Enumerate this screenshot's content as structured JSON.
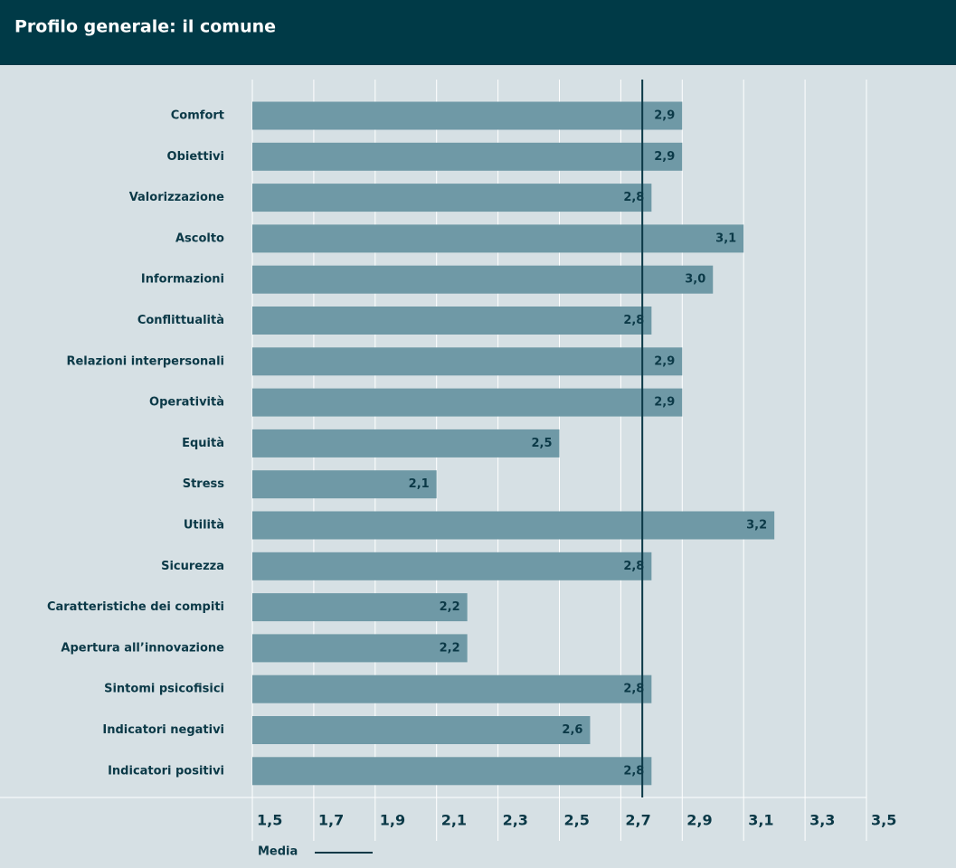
{
  "chart_data": {
    "type": "bar",
    "orientation": "horizontal",
    "title": "Profilo generale: il comune",
    "categories": [
      "Comfort",
      "Obiettivi",
      "Valorizzazione",
      "Ascolto",
      "Informazioni",
      "Conflittualità",
      "Relazioni interpersonali",
      "Operatività",
      "Equità",
      "Stress",
      "Utilità",
      "Sicurezza",
      "Caratteristiche dei compiti",
      "Apertura all’innovazione",
      "Sintomi psicofisici",
      "Indicatori negativi",
      "Indicatori positivi"
    ],
    "values": [
      2.9,
      2.9,
      2.8,
      3.1,
      3.0,
      2.8,
      2.9,
      2.9,
      2.5,
      2.1,
      3.2,
      2.8,
      2.2,
      2.2,
      2.8,
      2.6,
      2.8
    ],
    "value_labels": [
      "2,9",
      "2,9",
      "2,8",
      "3,1",
      "3,0",
      "2,8",
      "2,9",
      "2,9",
      "2,5",
      "2,1",
      "3,2",
      "2,8",
      "2,2",
      "2,2",
      "2,8",
      "2,6",
      "2,8"
    ],
    "color": "#6f99a6",
    "xlim": [
      1.5,
      3.5
    ],
    "xticks": [
      {
        "value": 1.5,
        "label": "1,5"
      },
      {
        "value": 1.7,
        "label": "1,7"
      },
      {
        "value": 1.9,
        "label": "1,9"
      },
      {
        "value": 2.1,
        "label": "2,1"
      },
      {
        "value": 2.3,
        "label": "2,3"
      },
      {
        "value": 2.5,
        "label": "2,5"
      },
      {
        "value": 2.7,
        "label": "2,7"
      },
      {
        "value": 2.9,
        "label": "2,9"
      },
      {
        "value": 3.1,
        "label": "3,1"
      },
      {
        "value": 3.3,
        "label": "3,3"
      },
      {
        "value": 3.5,
        "label": "3,5"
      }
    ],
    "grid": true,
    "mean": {
      "label": "Media",
      "value": 2.77,
      "color": "#0b3947"
    }
  }
}
